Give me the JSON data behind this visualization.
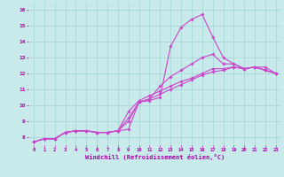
{
  "xlabel": "Windchill (Refroidissement éolien,°C)",
  "xlim": [
    -0.5,
    23.5
  ],
  "ylim": [
    7.5,
    16.5
  ],
  "xticks": [
    0,
    1,
    2,
    3,
    4,
    5,
    6,
    7,
    8,
    9,
    10,
    11,
    12,
    13,
    14,
    15,
    16,
    17,
    18,
    19,
    20,
    21,
    22,
    23
  ],
  "yticks": [
    8,
    9,
    10,
    11,
    12,
    13,
    14,
    15,
    16
  ],
  "bg_color": "#c8eaea",
  "grid_color": "#a8d8d8",
  "line_color": "#aa00aa",
  "line_color2": "#cc44cc",
  "lines": [
    [
      7.7,
      7.9,
      7.9,
      8.3,
      8.4,
      8.4,
      8.3,
      8.3,
      8.4,
      8.5,
      10.2,
      10.3,
      10.5,
      13.7,
      14.9,
      15.4,
      15.7,
      14.3,
      13.0,
      12.6,
      12.3,
      12.4,
      12.4,
      12.0
    ],
    [
      7.7,
      7.9,
      7.9,
      8.3,
      8.4,
      8.4,
      8.3,
      8.3,
      8.4,
      9.2,
      10.2,
      10.4,
      11.2,
      11.8,
      12.2,
      12.6,
      13.0,
      13.2,
      12.6,
      12.6,
      12.3,
      12.4,
      12.2,
      12.0
    ],
    [
      7.7,
      7.9,
      7.9,
      8.3,
      8.4,
      8.4,
      8.3,
      8.3,
      8.4,
      9.6,
      10.3,
      10.6,
      10.9,
      11.2,
      11.5,
      11.7,
      12.0,
      12.3,
      12.3,
      12.4,
      12.3,
      12.4,
      12.2,
      12.0
    ],
    [
      7.7,
      7.9,
      7.9,
      8.3,
      8.4,
      8.4,
      8.3,
      8.3,
      8.4,
      9.0,
      10.2,
      10.4,
      10.7,
      11.0,
      11.3,
      11.6,
      11.9,
      12.1,
      12.2,
      12.4,
      12.3,
      12.4,
      12.2,
      12.0
    ]
  ]
}
